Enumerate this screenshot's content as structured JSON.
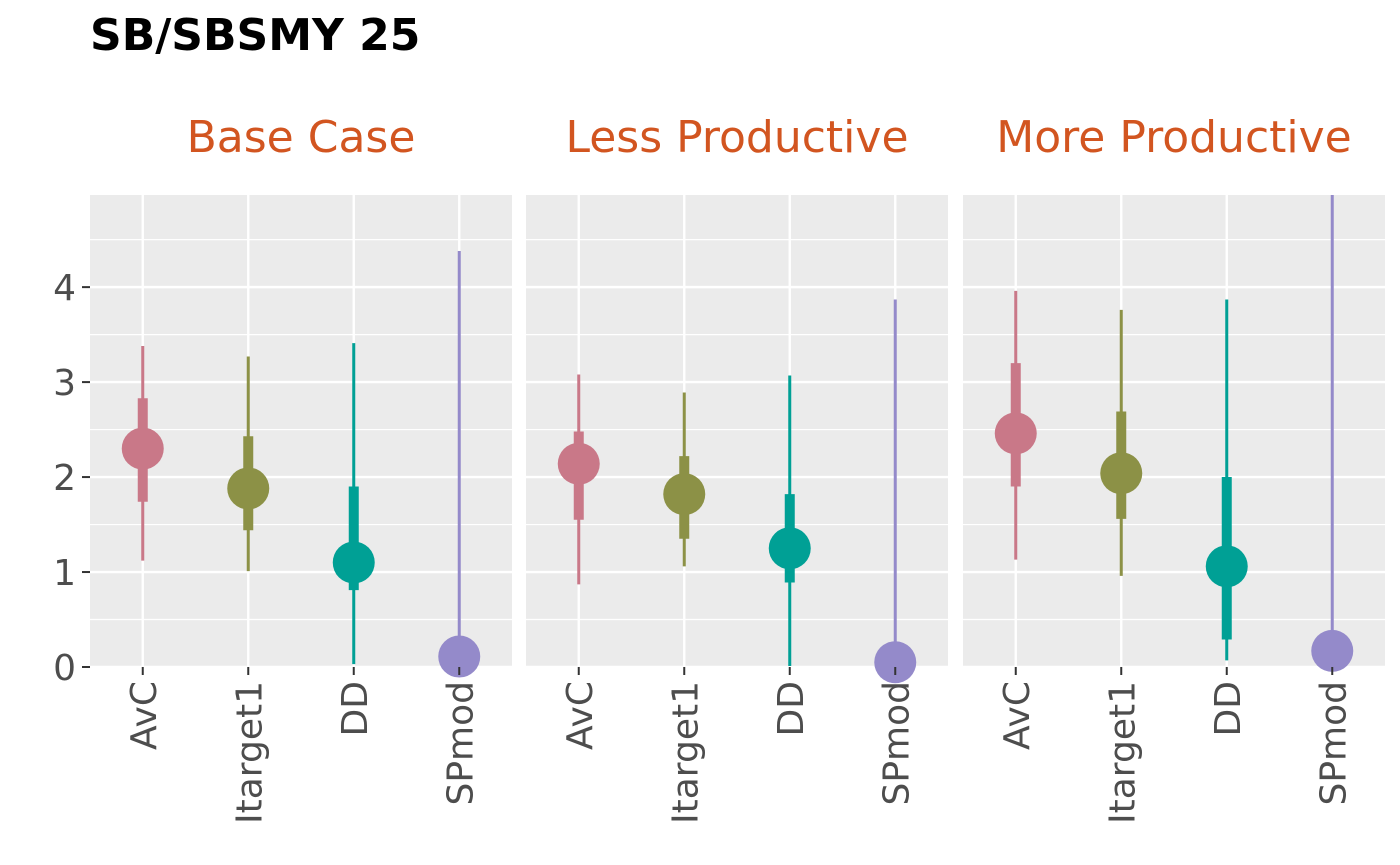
{
  "chart_data": {
    "type": "pointrange",
    "title": "SB/SBSMY 25",
    "xlabel": "",
    "ylabel": "",
    "ylim": [
      0,
      4.97
    ],
    "y_ticks": [
      0,
      1,
      2,
      3,
      4
    ],
    "grid": true,
    "categories": [
      "AvC",
      "Itarget1",
      "DD",
      "SPmod"
    ],
    "category_colors": [
      "#C97888",
      "#8C9146",
      "#00A095",
      "#948ACA"
    ],
    "strip_color": "#D25520",
    "panel_background": "#EBEBEB",
    "panels": [
      {
        "name": "Base Case",
        "points": [
          {
            "category": "AvC",
            "median": 2.3,
            "inner": [
              1.74,
              2.83
            ],
            "outer": [
              1.12,
              3.38
            ]
          },
          {
            "category": "Itarget1",
            "median": 1.88,
            "inner": [
              1.44,
              2.43
            ],
            "outer": [
              1.01,
              3.27
            ]
          },
          {
            "category": "DD",
            "median": 1.1,
            "inner": [
              0.81,
              1.9
            ],
            "outer": [
              0.03,
              3.41
            ]
          },
          {
            "category": "SPmod",
            "median": 0.11,
            "inner": [
              0.0,
              0.11
            ],
            "outer": [
              0.0,
              4.38
            ]
          }
        ]
      },
      {
        "name": "Less Productive",
        "points": [
          {
            "category": "AvC",
            "median": 2.14,
            "inner": [
              1.55,
              2.48
            ],
            "outer": [
              0.87,
              3.08
            ]
          },
          {
            "category": "Itarget1",
            "median": 1.82,
            "inner": [
              1.35,
              2.22
            ],
            "outer": [
              1.06,
              2.89
            ]
          },
          {
            "category": "DD",
            "median": 1.25,
            "inner": [
              0.89,
              1.82
            ],
            "outer": [
              0.01,
              3.07
            ]
          },
          {
            "category": "SPmod",
            "median": 0.05,
            "inner": [
              0.0,
              0.05
            ],
            "outer": [
              0.0,
              3.87
            ]
          }
        ]
      },
      {
        "name": "More Productive",
        "points": [
          {
            "category": "AvC",
            "median": 2.46,
            "inner": [
              1.9,
              3.2
            ],
            "outer": [
              1.13,
              3.96
            ]
          },
          {
            "category": "Itarget1",
            "median": 2.04,
            "inner": [
              1.56,
              2.69
            ],
            "outer": [
              0.96,
              3.76
            ]
          },
          {
            "category": "DD",
            "median": 1.06,
            "inner": [
              0.29,
              2.0
            ],
            "outer": [
              0.07,
              3.87
            ]
          },
          {
            "category": "SPmod",
            "median": 0.17,
            "inner": [
              0.0,
              0.17
            ],
            "outer": [
              0.0,
              4.97
            ]
          }
        ]
      }
    ]
  }
}
